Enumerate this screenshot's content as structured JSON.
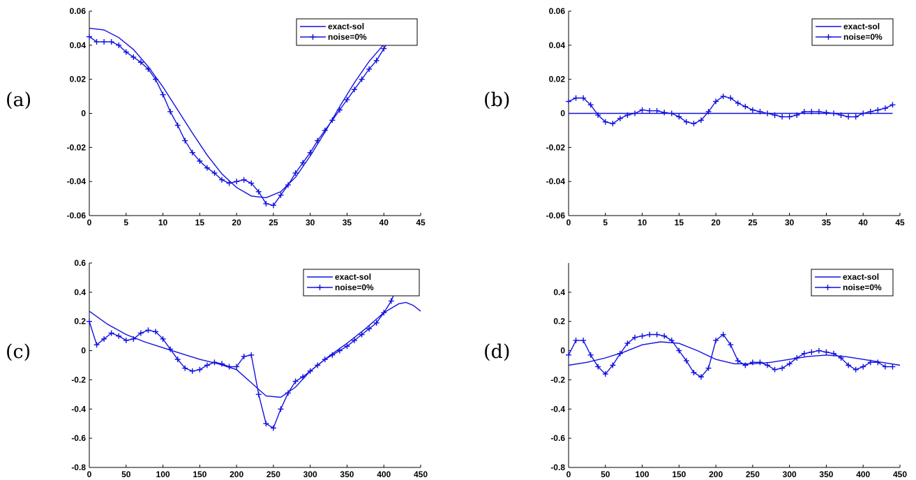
{
  "chart_data": [
    {
      "panel": "(a)",
      "type": "line",
      "xlim": [
        0,
        45
      ],
      "ylim": [
        -0.06,
        0.06
      ],
      "xticks": [
        0,
        5,
        10,
        15,
        20,
        25,
        30,
        35,
        40,
        45
      ],
      "yticks": [
        -0.06,
        -0.04,
        -0.02,
        0,
        0.02,
        0.04,
        0.06
      ],
      "xtick_labels": [
        "0",
        "5",
        "10",
        "15",
        "20",
        "25",
        "30",
        "35",
        "40",
        "45"
      ],
      "ytick_labels": [
        "-0.06",
        "-0.04",
        "-0.02",
        "0",
        "0.02",
        "0.04",
        "0.06"
      ],
      "legend": [
        "exact-sol",
        "noise=0%"
      ],
      "legend_position": "top-right",
      "series": [
        {
          "name": "exact-sol",
          "x": [
            0,
            2,
            4,
            6,
            8,
            10,
            12,
            14,
            16,
            18,
            20,
            22,
            24,
            26,
            28,
            30,
            32,
            34,
            36,
            38,
            40,
            42,
            44
          ],
          "y": [
            0.05,
            0.049,
            0.0445,
            0.0375,
            0.0275,
            0.0155,
            0.002,
            -0.0115,
            -0.0245,
            -0.0355,
            -0.0435,
            -0.0485,
            -0.0495,
            -0.046,
            -0.0375,
            -0.025,
            -0.011,
            0.004,
            0.018,
            0.0305,
            0.0405,
            0.047,
            0.05
          ]
        },
        {
          "name": "noise=0%",
          "x": [
            0,
            1,
            2,
            3,
            4,
            5,
            6,
            7,
            8,
            9,
            10,
            11,
            12,
            13,
            14,
            15,
            16,
            17,
            18,
            19,
            20,
            21,
            22,
            23,
            24,
            25,
            26,
            27,
            28,
            29,
            30,
            31,
            32,
            33,
            34,
            35,
            36,
            37,
            38,
            39,
            40,
            41,
            42,
            43,
            44
          ],
          "y": [
            0.045,
            0.042,
            0.042,
            0.042,
            0.04,
            0.036,
            0.033,
            0.03,
            0.026,
            0.02,
            0.011,
            0.001,
            -0.007,
            -0.016,
            -0.023,
            -0.028,
            -0.032,
            -0.035,
            -0.039,
            -0.041,
            -0.04,
            -0.039,
            -0.041,
            -0.046,
            -0.053,
            -0.054,
            -0.048,
            -0.042,
            -0.035,
            -0.029,
            -0.023,
            -0.016,
            -0.01,
            -0.004,
            0.002,
            0.008,
            0.014,
            0.02,
            0.026,
            0.031,
            0.038,
            0.045,
            0.052,
            0.054,
            0.051
          ]
        }
      ]
    },
    {
      "panel": "(b)",
      "type": "line",
      "xlim": [
        0,
        45
      ],
      "ylim": [
        -0.06,
        0.06
      ],
      "xticks": [
        0,
        5,
        10,
        15,
        20,
        25,
        30,
        35,
        40,
        45
      ],
      "yticks": [
        -0.06,
        -0.04,
        -0.02,
        0,
        0.02,
        0.04,
        0.06
      ],
      "xtick_labels": [
        "0",
        "5",
        "10",
        "15",
        "20",
        "25",
        "30",
        "35",
        "40",
        "45"
      ],
      "ytick_labels": [
        "-0.06",
        "-0.04",
        "-0.02",
        "0",
        "0.02",
        "0.04",
        "0.06"
      ],
      "legend": [
        "exact-sol",
        "noise=0%"
      ],
      "legend_position": "top-right",
      "series": [
        {
          "name": "exact-sol",
          "x": [
            0,
            44
          ],
          "y": [
            0,
            0
          ]
        },
        {
          "name": "noise=0%",
          "x": [
            0,
            1,
            2,
            3,
            4,
            5,
            6,
            7,
            8,
            9,
            10,
            11,
            12,
            13,
            14,
            15,
            16,
            17,
            18,
            19,
            20,
            21,
            22,
            23,
            24,
            25,
            26,
            27,
            28,
            29,
            30,
            31,
            32,
            33,
            34,
            35,
            36,
            37,
            38,
            39,
            40,
            41,
            42,
            43,
            44
          ],
          "y": [
            0.007,
            0.009,
            0.009,
            0.005,
            -0.001,
            -0.005,
            -0.006,
            -0.003,
            -0.001,
            0,
            0.002,
            0.0015,
            0.0015,
            0.0005,
            0,
            -0.002,
            -0.005,
            -0.006,
            -0.004,
            0.001,
            0.007,
            0.01,
            0.009,
            0.006,
            0.004,
            0.002,
            0.001,
            0,
            -0.001,
            -0.002,
            -0.002,
            -0.001,
            0.001,
            0.001,
            0.001,
            0.0005,
            0,
            -0.001,
            -0.002,
            -0.002,
            0,
            0.001,
            0.002,
            0.003,
            0.005
          ]
        }
      ]
    },
    {
      "panel": "(c)",
      "type": "line",
      "xlim": [
        0,
        450
      ],
      "ylim": [
        -0.8,
        0.6
      ],
      "xticks": [
        0,
        50,
        100,
        150,
        200,
        250,
        300,
        350,
        400,
        450
      ],
      "yticks": [
        -0.8,
        -0.6,
        -0.4,
        -0.2,
        0,
        0.2,
        0.4,
        0.6
      ],
      "xtick_labels": [
        "0",
        "50",
        "100",
        "150",
        "200",
        "250",
        "300",
        "350",
        "400",
        "450"
      ],
      "ytick_labels": [
        "-0.8",
        "-0.6",
        "-0.4",
        "-0.2",
        "0",
        "0.2",
        "0.4",
        "0.6"
      ],
      "legend": [
        "exact-sol",
        "noise=0%"
      ],
      "legend_position": "top-right",
      "series": [
        {
          "name": "exact-sol",
          "x": [
            0,
            25,
            50,
            75,
            100,
            125,
            150,
            175,
            200,
            220,
            240,
            260,
            280,
            300,
            325,
            350,
            375,
            400,
            420,
            430,
            440,
            450
          ],
          "y": [
            0.27,
            0.18,
            0.11,
            0.06,
            0.02,
            -0.02,
            -0.06,
            -0.09,
            -0.13,
            -0.22,
            -0.31,
            -0.32,
            -0.25,
            -0.14,
            -0.04,
            0.05,
            0.15,
            0.26,
            0.32,
            0.33,
            0.31,
            0.27
          ]
        },
        {
          "name": "noise=0%",
          "x": [
            0,
            10,
            20,
            30,
            40,
            50,
            60,
            70,
            80,
            90,
            100,
            110,
            120,
            130,
            140,
            150,
            160,
            170,
            180,
            190,
            200,
            210,
            220,
            230,
            240,
            250,
            260,
            270,
            280,
            290,
            300,
            310,
            320,
            330,
            340,
            350,
            360,
            370,
            380,
            390,
            400,
            410,
            420,
            430,
            440
          ],
          "y": [
            0.2,
            0.04,
            0.08,
            0.12,
            0.1,
            0.07,
            0.08,
            0.12,
            0.14,
            0.13,
            0.08,
            0.01,
            -0.06,
            -0.12,
            -0.14,
            -0.13,
            -0.1,
            -0.08,
            -0.09,
            -0.11,
            -0.11,
            -0.04,
            -0.03,
            -0.3,
            -0.5,
            -0.53,
            -0.4,
            -0.29,
            -0.21,
            -0.18,
            -0.14,
            -0.1,
            -0.06,
            -0.03,
            0,
            0.03,
            0.07,
            0.11,
            0.15,
            0.19,
            0.26,
            0.34,
            0.46,
            0.5,
            0.41
          ]
        }
      ]
    },
    {
      "panel": "(d)",
      "type": "line",
      "xlim": [
        0,
        450
      ],
      "ylim": [
        -0.8,
        0.6
      ],
      "xticks": [
        0,
        50,
        100,
        150,
        200,
        250,
        300,
        350,
        400,
        450
      ],
      "yticks": [
        -0.8,
        -0.6,
        -0.4,
        -0.2,
        0,
        0.2,
        0.4
      ],
      "xtick_labels": [
        "0",
        "50",
        "100",
        "150",
        "200",
        "250",
        "300",
        "350",
        "400",
        "450"
      ],
      "ytick_labels": [
        "-0.8",
        "-0.6",
        "-0.4",
        "-0.2",
        "0",
        "0.2",
        "0.4"
      ],
      "legend": [
        "exact-sol",
        "noise=0%"
      ],
      "legend_position": "top-right",
      "series": [
        {
          "name": "exact-sol",
          "x": [
            0,
            25,
            50,
            75,
            100,
            125,
            150,
            175,
            200,
            225,
            250,
            275,
            300,
            325,
            350,
            375,
            400,
            425,
            450
          ],
          "y": [
            -0.1,
            -0.08,
            -0.05,
            -0.01,
            0.04,
            0.06,
            0.05,
            0.0,
            -0.06,
            -0.09,
            -0.09,
            -0.08,
            -0.06,
            -0.04,
            -0.03,
            -0.04,
            -0.06,
            -0.08,
            -0.1
          ]
        },
        {
          "name": "noise=0%",
          "x": [
            0,
            10,
            20,
            30,
            40,
            50,
            60,
            70,
            80,
            90,
            100,
            110,
            120,
            130,
            140,
            150,
            160,
            170,
            180,
            190,
            200,
            210,
            220,
            230,
            240,
            250,
            260,
            270,
            280,
            290,
            300,
            310,
            320,
            330,
            340,
            350,
            360,
            370,
            380,
            390,
            400,
            410,
            420,
            430,
            440
          ],
          "y": [
            -0.03,
            0.07,
            0.07,
            -0.03,
            -0.11,
            -0.16,
            -0.1,
            -0.02,
            0.05,
            0.09,
            0.1,
            0.11,
            0.11,
            0.1,
            0.07,
            0.0,
            -0.07,
            -0.15,
            -0.18,
            -0.12,
            0.07,
            0.11,
            0.04,
            -0.07,
            -0.1,
            -0.08,
            -0.08,
            -0.1,
            -0.13,
            -0.12,
            -0.09,
            -0.05,
            -0.02,
            -0.01,
            0.0,
            -0.01,
            -0.02,
            -0.05,
            -0.1,
            -0.13,
            -0.11,
            -0.08,
            -0.08,
            -0.11,
            -0.11
          ]
        }
      ]
    }
  ],
  "colors": {
    "line": "#1010e0",
    "axis": "#000000"
  }
}
